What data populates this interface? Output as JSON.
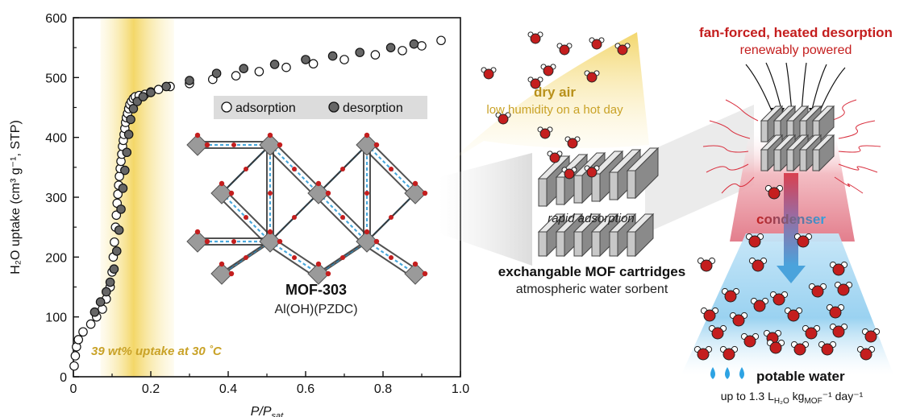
{
  "chart_data": {
    "type": "scatter",
    "xlabel": "P/P",
    "xlabel_sub": "sat",
    "ylabel": "H₂O uptake (cm³ g⁻¹, STP)",
    "xlim": [
      0,
      1.0
    ],
    "ylim": [
      0,
      600
    ],
    "xticks": [
      "0",
      "0.2",
      "0.4",
      "0.6",
      "0.8",
      "1.0"
    ],
    "yticks": [
      "0",
      "100",
      "200",
      "300",
      "400",
      "500",
      "600"
    ],
    "highlight_band": {
      "from": 0.07,
      "to": 0.26,
      "color": "#f2d45a"
    },
    "series": [
      {
        "name": "adsorption",
        "marker": "open-circle",
        "x": [
          0.002,
          0.005,
          0.008,
          0.013,
          0.025,
          0.045,
          0.06,
          0.075,
          0.085,
          0.095,
          0.1,
          0.103,
          0.106,
          0.109,
          0.111,
          0.113,
          0.115,
          0.117,
          0.119,
          0.121,
          0.123,
          0.125,
          0.127,
          0.129,
          0.131,
          0.133,
          0.135,
          0.137,
          0.14,
          0.143,
          0.146,
          0.15,
          0.155,
          0.16,
          0.17,
          0.185,
          0.2,
          0.22,
          0.25,
          0.3,
          0.36,
          0.42,
          0.48,
          0.55,
          0.62,
          0.7,
          0.78,
          0.85,
          0.9,
          0.95
        ],
        "y": [
          18,
          35,
          50,
          62,
          75,
          88,
          100,
          113,
          130,
          150,
          175,
          200,
          225,
          250,
          270,
          290,
          305,
          320,
          335,
          348,
          360,
          372,
          385,
          395,
          405,
          415,
          425,
          433,
          440,
          448,
          455,
          460,
          465,
          468,
          470,
          472,
          476,
          480,
          485,
          490,
          497,
          503,
          510,
          517,
          523,
          530,
          538,
          545,
          553,
          562
        ]
      },
      {
        "name": "desorption",
        "marker": "filled-circle",
        "x": [
          0.055,
          0.07,
          0.085,
          0.095,
          0.105,
          0.112,
          0.118,
          0.123,
          0.128,
          0.133,
          0.138,
          0.143,
          0.148,
          0.155,
          0.165,
          0.18,
          0.2,
          0.24,
          0.3,
          0.37,
          0.44,
          0.52,
          0.6,
          0.67,
          0.74,
          0.82,
          0.88
        ],
        "y": [
          108,
          125,
          142,
          158,
          180,
          210,
          245,
          280,
          315,
          345,
          375,
          405,
          430,
          448,
          460,
          468,
          475,
          485,
          495,
          507,
          515,
          522,
          530,
          536,
          542,
          550,
          556
        ]
      }
    ],
    "legend": {
      "position": "top-right",
      "items": [
        "adsorption",
        "desorption"
      ]
    },
    "annotation": "39 wt% uptake at 30 ˚C"
  },
  "mof": {
    "name": "MOF-303",
    "formula": "Al(OH)(PZDC)"
  },
  "middle": {
    "dry_air_title": "dry air",
    "dry_air_sub": "low humidity on a hot day",
    "rapid": "rapid adsorption",
    "cartridges_title": "exchangable MOF cartridges",
    "cartridges_sub": "atmospheric water sorbent"
  },
  "right": {
    "title": "fan-forced, heated desorption",
    "subtitle": "renewably powered",
    "condenser": "condenser",
    "potable": "potable water",
    "rate_pre": "up to 1.3 L",
    "rate_sub1": "H₂O",
    "rate_mid": " kg",
    "rate_sub2": "MOF",
    "rate_post": "⁻¹ day⁻¹"
  },
  "colors": {
    "accent_gold": "#c9a227",
    "accent_red": "#c41e1e",
    "accent_blue": "#3aa6e0"
  }
}
